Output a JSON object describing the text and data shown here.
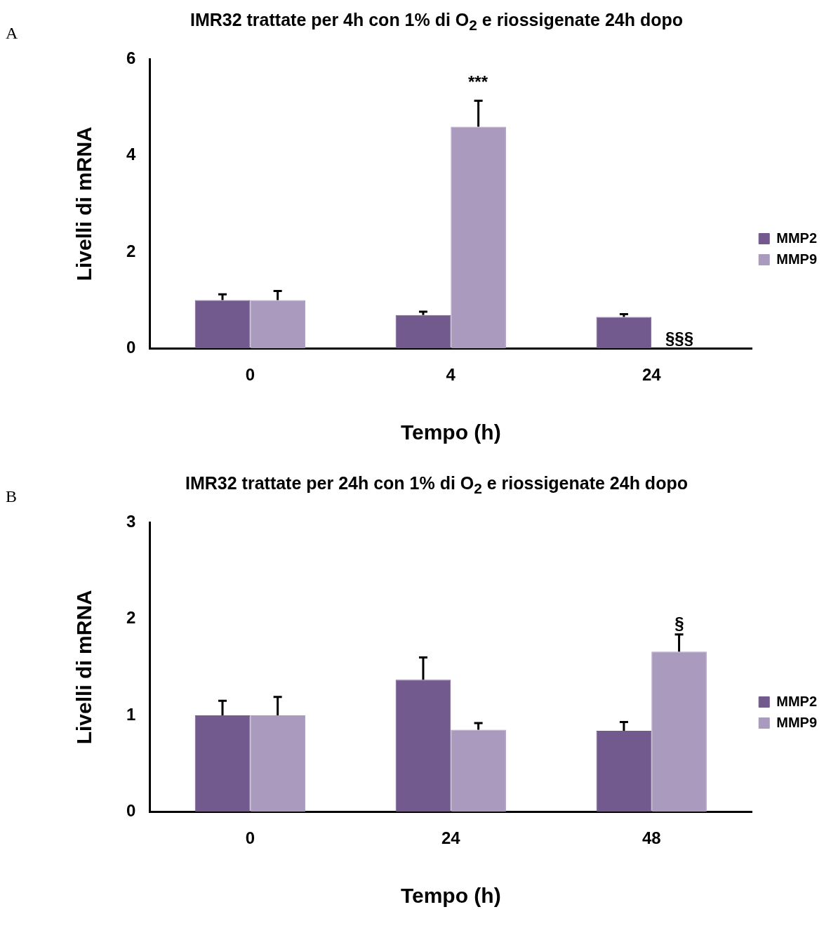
{
  "chart_data": [
    {
      "type": "bar",
      "title": "IMR32 trattate per 4h con 1% di O$_{2}$ e riossigenate 24h dopo",
      "xlabel": "Tempo (h)",
      "ylabel": "Livelli di mRNA",
      "categories": [
        "0",
        "4",
        "24"
      ],
      "series": [
        {
          "name": "MMP2",
          "color": "#72598e",
          "values": [
            1.0,
            0.69,
            0.65
          ],
          "errors": [
            0.12,
            0.07,
            0.06
          ]
        },
        {
          "name": "MMP9",
          "color": "#a99abe",
          "values": [
            1.0,
            4.6,
            0
          ],
          "errors": [
            0.19,
            0.54,
            null
          ]
        }
      ],
      "ylim": [
        0,
        6
      ],
      "yticks": [
        0,
        2,
        4,
        6
      ],
      "grid": false,
      "legend": "right",
      "annotations": [
        "A",
        "***",
        "§§§"
      ]
    },
    {
      "type": "bar",
      "title": "IMR32 trattate per 24h con 1% di O$_{2}$ e riossigenate 24h dopo",
      "xlabel": "Tempo (h)",
      "ylabel": "Livelli di mRNA",
      "categories": [
        "0",
        "24",
        "48"
      ],
      "series": [
        {
          "name": "MMP2",
          "color": "#72598e",
          "values": [
            1.0,
            1.37,
            0.84
          ],
          "errors": [
            0.15,
            0.23,
            0.09
          ]
        },
        {
          "name": "MMP9",
          "color": "#a99abe",
          "values": [
            1.0,
            0.85,
            1.66
          ],
          "errors": [
            0.19,
            0.07,
            0.18
          ]
        }
      ],
      "ylim": [
        0,
        3
      ],
      "yticks": [
        0,
        1,
        2,
        3
      ],
      "grid": false,
      "legend": "right",
      "annotations": [
        "B",
        "§"
      ]
    }
  ]
}
